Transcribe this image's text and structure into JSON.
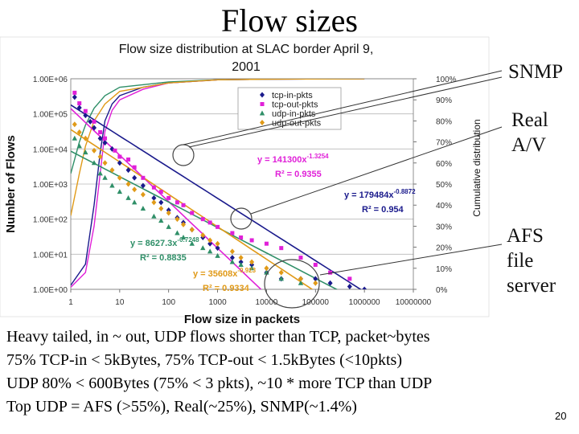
{
  "slide": {
    "title": "Flow sizes",
    "page_number": "20",
    "annotations": {
      "snmp": "SNMP",
      "real_av": "Real\nA/V",
      "afs": "AFS\nfile\nserver"
    },
    "notes": [
      "Heavy tailed, in ~ out, UDP flows shorter than TCP, packet~bytes",
      "75% TCP-in < 5kBytes, 75% TCP-out < 1.5kBytes (<10pkts)",
      "UDP 80% < 600Bytes (75% < 3 pkts), ~10 * more TCP than UDP",
      "Top UDP = AFS (>55%), Real(~25%), SNMP(~1.4%)"
    ]
  },
  "chart_data": {
    "type": "scatter",
    "title": "Flow size distribution at SLAC border April 9, 2001",
    "xlabel": "Flow size in packets",
    "ylabel": "Number of Flows",
    "y2label": "Cumulative distribution",
    "x_scale": "log",
    "y_scale": "log",
    "xlim": [
      1,
      10000000
    ],
    "ylim": [
      1,
      1000000
    ],
    "y2lim": [
      0,
      100
    ],
    "x_ticks": [
      "1",
      "10",
      "100",
      "1000",
      "10000",
      "100000",
      "1000000",
      "10000000"
    ],
    "y_ticks": [
      "1.00E+00",
      "1.00E+01",
      "1.00E+02",
      "1.00E+03",
      "1.00E+04",
      "1.00E+05",
      "1.00E+06"
    ],
    "y2_ticks": [
      "0%",
      "10%",
      "20%",
      "30%",
      "40%",
      "50%",
      "60%",
      "70%",
      "80%",
      "90%",
      "100%"
    ],
    "legend_position": "top-center",
    "colors": {
      "tcp_in": "#1a1a8c",
      "tcp_out": "#e020d8",
      "udp_in": "#2f8f68",
      "udp_out": "#e09a18",
      "grid": "#b8b8b8",
      "highlight": "#444444"
    },
    "series": [
      {
        "name": "tcp-in-pkts",
        "marker": "diamond",
        "color": "#1a1a8c",
        "points": [
          [
            1.2,
            300000
          ],
          [
            1.5,
            150000
          ],
          [
            2,
            90000
          ],
          [
            2.5,
            60000
          ],
          [
            3,
            40000
          ],
          [
            4,
            20000
          ],
          [
            5,
            15000
          ],
          [
            7,
            10000
          ],
          [
            10,
            4000
          ],
          [
            15,
            2500
          ],
          [
            20,
            1500
          ],
          [
            30,
            900
          ],
          [
            50,
            400
          ],
          [
            70,
            300
          ],
          [
            100,
            180
          ],
          [
            150,
            110
          ],
          [
            200,
            80
          ],
          [
            300,
            50
          ],
          [
            500,
            30
          ],
          [
            700,
            20
          ],
          [
            1000,
            15
          ],
          [
            2000,
            8
          ],
          [
            3000,
            6
          ],
          [
            5000,
            5
          ],
          [
            10000,
            3
          ],
          [
            20000,
            2
          ],
          [
            50000,
            2
          ],
          [
            100000,
            2
          ],
          [
            200000,
            1.5
          ],
          [
            500000,
            1.2
          ],
          [
            1000000,
            1
          ]
        ]
      },
      {
        "name": "tcp-out-pkts",
        "marker": "square",
        "color": "#e020d8",
        "points": [
          [
            1.2,
            400000
          ],
          [
            1.5,
            200000
          ],
          [
            2,
            120000
          ],
          [
            3,
            60000
          ],
          [
            4,
            30000
          ],
          [
            5,
            20000
          ],
          [
            8,
            9000
          ],
          [
            10,
            6000
          ],
          [
            15,
            5000
          ],
          [
            20,
            3000
          ],
          [
            30,
            1500
          ],
          [
            50,
            800
          ],
          [
            70,
            600
          ],
          [
            100,
            400
          ],
          [
            150,
            300
          ],
          [
            200,
            250
          ],
          [
            300,
            150
          ],
          [
            500,
            100
          ],
          [
            700,
            80
          ],
          [
            1000,
            60
          ],
          [
            2000,
            40
          ],
          [
            3000,
            30
          ],
          [
            5000,
            25
          ],
          [
            10000,
            20
          ],
          [
            20000,
            15
          ],
          [
            50000,
            8
          ],
          [
            100000,
            5
          ],
          [
            200000,
            3
          ],
          [
            500000,
            2
          ]
        ]
      },
      {
        "name": "udp-in-pkts",
        "marker": "triangle",
        "color": "#2f8f68",
        "points": [
          [
            1.2,
            20000
          ],
          [
            1.5,
            12000
          ],
          [
            2,
            8000
          ],
          [
            3,
            4000
          ],
          [
            4,
            2000
          ],
          [
            5,
            1500
          ],
          [
            7,
            900
          ],
          [
            10,
            600
          ],
          [
            15,
            400
          ],
          [
            20,
            300
          ],
          [
            30,
            200
          ],
          [
            50,
            120
          ],
          [
            70,
            90
          ],
          [
            100,
            60
          ],
          [
            150,
            40
          ],
          [
            200,
            30
          ],
          [
            300,
            20
          ],
          [
            500,
            15
          ],
          [
            700,
            12
          ],
          [
            1000,
            9
          ],
          [
            2000,
            6
          ],
          [
            3000,
            5
          ],
          [
            5000,
            4
          ],
          [
            10000,
            3
          ],
          [
            20000,
            2
          ],
          [
            50000,
            1.5
          ]
        ]
      },
      {
        "name": "udp-out-pkts",
        "marker": "diamond",
        "color": "#e09a18",
        "points": [
          [
            1.2,
            50000
          ],
          [
            1.5,
            30000
          ],
          [
            2,
            20000
          ],
          [
            3,
            9000
          ],
          [
            4,
            6000
          ],
          [
            5,
            4000
          ],
          [
            7,
            2500
          ],
          [
            10,
            1500
          ],
          [
            15,
            1000
          ],
          [
            20,
            700
          ],
          [
            30,
            500
          ],
          [
            50,
            300
          ],
          [
            70,
            200
          ],
          [
            100,
            150
          ],
          [
            150,
            100
          ],
          [
            200,
            70
          ],
          [
            300,
            50
          ],
          [
            500,
            35
          ],
          [
            700,
            25
          ],
          [
            1000,
            20
          ],
          [
            2000,
            12
          ],
          [
            3000,
            8
          ],
          [
            5000,
            6
          ],
          [
            10000,
            4
          ],
          [
            20000,
            3
          ],
          [
            50000,
            2
          ],
          [
            100000,
            1.5
          ]
        ]
      }
    ],
    "cumulative_curves": [
      {
        "series": "tcp-in-pkts",
        "color": "#1a1a8c",
        "x": [
          1,
          2,
          3,
          4,
          5,
          7,
          10,
          30,
          100,
          1000,
          10000,
          1000000
        ],
        "pct": [
          2,
          12,
          40,
          65,
          80,
          88,
          92,
          96,
          98,
          99.5,
          99.8,
          100
        ]
      },
      {
        "series": "tcp-out-pkts",
        "color": "#e020d8",
        "x": [
          1,
          2,
          3,
          4,
          5,
          7,
          10,
          30,
          100,
          1000,
          10000,
          1000000
        ],
        "pct": [
          1,
          8,
          30,
          55,
          75,
          85,
          90,
          95,
          98,
          99.5,
          99.8,
          100
        ]
      },
      {
        "series": "udp-in-pkts",
        "color": "#2f8f68",
        "x": [
          1,
          1.5,
          2,
          3,
          5,
          10,
          100,
          1000,
          10000,
          1000000
        ],
        "pct": [
          55,
          70,
          78,
          86,
          92,
          96,
          98.5,
          99.5,
          99.8,
          100
        ]
      },
      {
        "series": "udp-out-pkts",
        "color": "#e09a18",
        "x": [
          1,
          1.5,
          2,
          3,
          5,
          10,
          100,
          1000,
          10000,
          1000000
        ],
        "pct": [
          35,
          55,
          68,
          80,
          88,
          94,
          98,
          99.5,
          99.8,
          100
        ]
      }
    ],
    "fits": [
      {
        "series": "tcp-in-pkts",
        "color": "#1a1a8c",
        "a": 179484,
        "b": -0.8872,
        "equation": "y = 179484x",
        "exponent": "-0.8872",
        "r2": "R² = 0.954"
      },
      {
        "series": "tcp-out-pkts",
        "color": "#e020d8",
        "a": 141300,
        "b": -1.3254,
        "equation": "y = 141300x",
        "exponent": "-1.3254",
        "r2": "R² = 0.9355"
      },
      {
        "series": "udp-in-pkts",
        "color": "#2f8f68",
        "a": 8627.3,
        "b": -0.7248,
        "equation": "y = 8627.3x",
        "exponent": "-0.7248",
        "r2": "R² = 0.8835"
      },
      {
        "series": "udp-out-pkts",
        "color": "#e09a18",
        "a": 35608,
        "b": -0.923,
        "equation": "y = 35608x",
        "exponent": "-0.923",
        "r2": "R² = 0.9334"
      }
    ]
  }
}
